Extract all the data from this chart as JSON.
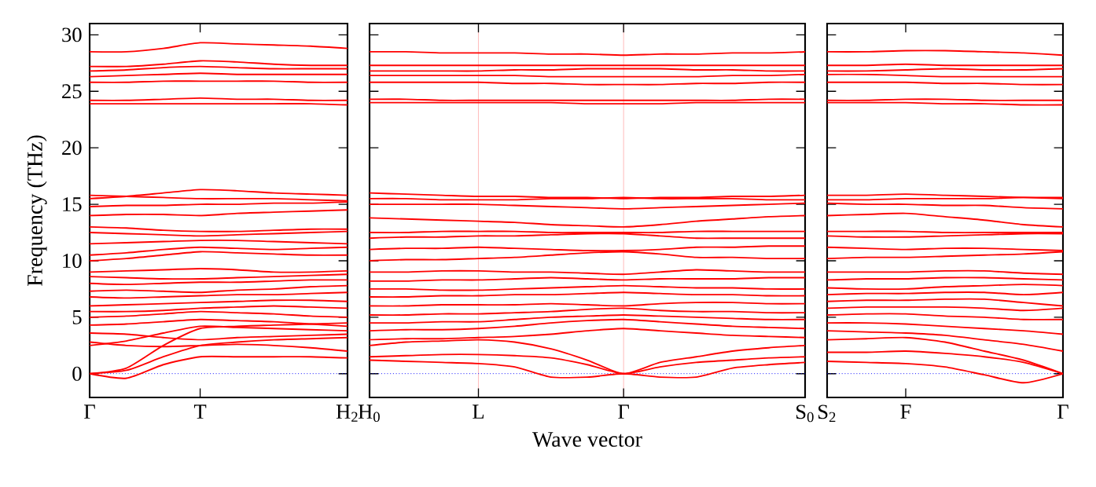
{
  "chart_data": [
    {
      "type": "line",
      "ylabel": "Frequency (THz)",
      "categories": [
        "Γ",
        null,
        null,
        "T",
        null,
        null,
        null,
        "H$_{2}$"
      ],
      "ylim": [
        -2.1,
        31
      ],
      "yticks": [
        0,
        5,
        10,
        15,
        20,
        25,
        30
      ],
      "ref_lines": [
        {
          "axis": "y",
          "value": 0,
          "color": "#0000ff",
          "line_style": "dotted"
        }
      ],
      "series": [
        {
          "color": "#ff0000",
          "values": [
            0,
            0.3,
            1.5,
            2.5,
            2.8,
            3.0,
            3.1,
            3.2
          ]
        },
        {
          "color": "#ff0000",
          "values": [
            0,
            0.5,
            2.5,
            4.0,
            4.2,
            4.3,
            4.4,
            4.5
          ]
        },
        {
          "color": "#ff0000",
          "values": [
            0,
            -0.4,
            0.8,
            1.5,
            1.5,
            1.5,
            1.5,
            1.4
          ]
        },
        {
          "color": "#ff0000",
          "values": [
            2.5,
            2.9,
            3.6,
            4.2,
            4.1,
            4.0,
            3.9,
            3.8
          ]
        },
        {
          "color": "#ff0000",
          "values": [
            2.8,
            2.5,
            2.4,
            2.5,
            2.6,
            2.5,
            2.3,
            2.0
          ]
        },
        {
          "color": "#ff0000",
          "values": [
            3.6,
            3.5,
            3.2,
            3.0,
            3.2,
            3.3,
            3.4,
            3.5
          ]
        },
        {
          "color": "#ff0000",
          "values": [
            4.3,
            4.4,
            4.6,
            4.8,
            4.7,
            4.6,
            4.4,
            4.2
          ]
        },
        {
          "color": "#ff0000",
          "values": [
            5.0,
            5.1,
            5.3,
            5.5,
            5.4,
            5.3,
            5.1,
            5.0
          ]
        },
        {
          "color": "#ff0000",
          "values": [
            5.5,
            5.5,
            5.6,
            5.8,
            5.9,
            6.0,
            5.9,
            5.8
          ]
        },
        {
          "color": "#ff0000",
          "values": [
            6.0,
            6.1,
            6.2,
            6.3,
            6.4,
            6.5,
            6.5,
            6.4
          ]
        },
        {
          "color": "#ff0000",
          "values": [
            6.8,
            6.7,
            6.8,
            6.9,
            7.0,
            7.0,
            7.1,
            7.2
          ]
        },
        {
          "color": "#ff0000",
          "values": [
            7.3,
            7.4,
            7.3,
            7.2,
            7.4,
            7.5,
            7.7,
            7.8
          ]
        },
        {
          "color": "#ff0000",
          "values": [
            8.0,
            7.9,
            8.0,
            8.1,
            8.1,
            8.2,
            8.3,
            8.3
          ]
        },
        {
          "color": "#ff0000",
          "values": [
            8.6,
            8.5,
            8.4,
            8.4,
            8.5,
            8.6,
            8.7,
            8.8
          ]
        },
        {
          "color": "#ff0000",
          "values": [
            9.0,
            9.1,
            9.2,
            9.3,
            9.2,
            9.0,
            9.0,
            9.1
          ]
        },
        {
          "color": "#ff0000",
          "values": [
            10.0,
            10.2,
            10.5,
            10.8,
            10.7,
            10.6,
            10.5,
            10.5
          ]
        },
        {
          "color": "#ff0000",
          "values": [
            10.5,
            10.7,
            11.0,
            11.2,
            11.1,
            11.0,
            11.1,
            11.2
          ]
        },
        {
          "color": "#ff0000",
          "values": [
            11.5,
            11.6,
            11.7,
            11.8,
            11.8,
            11.7,
            11.6,
            11.5
          ]
        },
        {
          "color": "#ff0000",
          "values": [
            12.5,
            12.4,
            12.3,
            12.2,
            12.3,
            12.4,
            12.5,
            12.6
          ]
        },
        {
          "color": "#ff0000",
          "values": [
            13.0,
            12.9,
            12.7,
            12.6,
            12.6,
            12.7,
            12.8,
            12.8
          ]
        },
        {
          "color": "#ff0000",
          "values": [
            14.0,
            14.1,
            14.1,
            14.0,
            14.2,
            14.3,
            14.4,
            14.5
          ]
        },
        {
          "color": "#ff0000",
          "values": [
            14.8,
            14.9,
            14.9,
            15.0,
            15.0,
            15.1,
            15.1,
            15.2
          ]
        },
        {
          "color": "#ff0000",
          "values": [
            15.5,
            15.7,
            16.0,
            16.3,
            16.2,
            16.0,
            15.9,
            15.8
          ]
        },
        {
          "color": "#ff0000",
          "values": [
            15.8,
            15.7,
            15.6,
            15.5,
            15.5,
            15.5,
            15.4,
            15.3
          ]
        },
        {
          "color": "#ff0000",
          "values": [
            24.2,
            24.2,
            24.3,
            24.4,
            24.3,
            24.3,
            24.2,
            24.2
          ]
        },
        {
          "color": "#ff0000",
          "values": [
            23.9,
            23.9,
            23.9,
            23.9,
            23.9,
            23.9,
            23.9,
            23.8
          ]
        },
        {
          "color": "#ff0000",
          "values": [
            25.8,
            25.8,
            25.9,
            25.9,
            25.9,
            25.9,
            25.8,
            25.8
          ]
        },
        {
          "color": "#ff0000",
          "values": [
            26.3,
            26.4,
            26.5,
            26.6,
            26.5,
            26.5,
            26.5,
            26.5
          ]
        },
        {
          "color": "#ff0000",
          "values": [
            26.8,
            26.9,
            27.1,
            27.2,
            27.1,
            27.0,
            27.0,
            27.0
          ]
        },
        {
          "color": "#ff0000",
          "values": [
            27.2,
            27.2,
            27.4,
            27.7,
            27.6,
            27.4,
            27.3,
            27.3
          ]
        },
        {
          "color": "#ff0000",
          "values": [
            28.5,
            28.5,
            28.8,
            29.3,
            29.2,
            29.1,
            29.0,
            28.8
          ]
        }
      ]
    },
    {
      "type": "line",
      "xlabel": "Wave vector",
      "grid": "x",
      "tick_labels": "x",
      "categories": [
        "H$_{0}$",
        null,
        null,
        "L",
        null,
        null,
        null,
        "Γ",
        null,
        null,
        null,
        null,
        "S$_{0}$"
      ],
      "ylim": [
        -2.1,
        31
      ],
      "yticks": [
        0,
        5,
        10,
        15,
        20,
        25,
        30
      ],
      "ref_lines": [
        {
          "axis": "y",
          "value": 0,
          "color": "#0000ff",
          "line_style": "dotted"
        }
      ],
      "series": [
        {
          "color": "#ff0000",
          "values": [
            1.5,
            1.6,
            1.7,
            1.7,
            1.6,
            1.4,
            0.8,
            0,
            0.6,
            1.0,
            1.2,
            1.4,
            1.5
          ]
        },
        {
          "color": "#ff0000",
          "values": [
            1.2,
            1.1,
            1.0,
            0.9,
            0.6,
            -0.3,
            -0.3,
            0,
            -0.3,
            -0.3,
            0.5,
            0.8,
            1.0
          ]
        },
        {
          "color": "#ff0000",
          "values": [
            2.5,
            2.8,
            2.9,
            3.0,
            2.8,
            2.2,
            1.2,
            0,
            1.0,
            1.5,
            2.0,
            2.3,
            2.5
          ]
        },
        {
          "color": "#ff0000",
          "values": [
            3.0,
            3.1,
            3.1,
            3.2,
            3.3,
            3.5,
            3.8,
            4.0,
            3.8,
            3.6,
            3.4,
            3.3,
            3.2
          ]
        },
        {
          "color": "#ff0000",
          "values": [
            3.8,
            3.9,
            3.9,
            4.0,
            4.2,
            4.5,
            4.7,
            4.8,
            4.6,
            4.4,
            4.2,
            4.1,
            4.0
          ]
        },
        {
          "color": "#ff0000",
          "values": [
            4.5,
            4.5,
            4.6,
            4.6,
            4.8,
            5.0,
            5.1,
            5.2,
            5.1,
            5.0,
            4.9,
            4.8,
            4.8
          ]
        },
        {
          "color": "#ff0000",
          "values": [
            5.2,
            5.2,
            5.3,
            5.3,
            5.4,
            5.5,
            5.7,
            5.8,
            5.6,
            5.5,
            5.5,
            5.4,
            5.4
          ]
        },
        {
          "color": "#ff0000",
          "values": [
            6.0,
            6.0,
            6.1,
            6.1,
            6.1,
            6.2,
            6.1,
            6.0,
            6.2,
            6.3,
            6.3,
            6.2,
            6.2
          ]
        },
        {
          "color": "#ff0000",
          "values": [
            6.8,
            6.8,
            6.9,
            6.9,
            7.0,
            7.0,
            7.1,
            7.2,
            7.1,
            7.0,
            7.0,
            6.9,
            6.9
          ]
        },
        {
          "color": "#ff0000",
          "values": [
            7.5,
            7.5,
            7.4,
            7.4,
            7.5,
            7.6,
            7.7,
            7.8,
            7.7,
            7.6,
            7.6,
            7.5,
            7.5
          ]
        },
        {
          "color": "#ff0000",
          "values": [
            8.2,
            8.2,
            8.3,
            8.3,
            8.4,
            8.5,
            8.4,
            8.3,
            8.4,
            8.4,
            8.4,
            8.5,
            8.5
          ]
        },
        {
          "color": "#ff0000",
          "values": [
            9.0,
            9.0,
            9.1,
            9.1,
            9.0,
            9.0,
            8.9,
            8.8,
            9.0,
            9.2,
            9.1,
            9.0,
            9.0
          ]
        },
        {
          "color": "#ff0000",
          "values": [
            10.0,
            10.1,
            10.1,
            10.2,
            10.3,
            10.5,
            10.7,
            10.8,
            10.6,
            10.3,
            10.3,
            10.2,
            10.2
          ]
        },
        {
          "color": "#ff0000",
          "values": [
            11.0,
            11.1,
            11.1,
            11.2,
            11.1,
            11.0,
            10.9,
            10.9,
            11.0,
            11.2,
            11.2,
            11.3,
            11.3
          ]
        },
        {
          "color": "#ff0000",
          "values": [
            12.0,
            12.1,
            12.1,
            12.2,
            12.2,
            12.3,
            12.4,
            12.4,
            12.2,
            12.0,
            12.0,
            12.0,
            12.0
          ]
        },
        {
          "color": "#ff0000",
          "values": [
            12.5,
            12.5,
            12.6,
            12.6,
            12.6,
            12.5,
            12.5,
            12.5,
            12.5,
            12.6,
            12.6,
            12.6,
            12.6
          ]
        },
        {
          "color": "#ff0000",
          "values": [
            13.8,
            13.7,
            13.6,
            13.5,
            13.4,
            13.2,
            13.1,
            13.0,
            13.2,
            13.5,
            13.7,
            13.9,
            14.0
          ]
        },
        {
          "color": "#ff0000",
          "values": [
            15.0,
            15.0,
            15.0,
            15.0,
            14.9,
            14.8,
            14.7,
            14.6,
            14.7,
            14.8,
            14.9,
            15.0,
            15.1
          ]
        },
        {
          "color": "#ff0000",
          "values": [
            15.5,
            15.5,
            15.4,
            15.4,
            15.4,
            15.5,
            15.5,
            15.6,
            15.5,
            15.5,
            15.5,
            15.4,
            15.4
          ]
        },
        {
          "color": "#ff0000",
          "values": [
            16.0,
            15.9,
            15.8,
            15.7,
            15.7,
            15.6,
            15.6,
            15.5,
            15.6,
            15.6,
            15.7,
            15.7,
            15.8
          ]
        },
        {
          "color": "#ff0000",
          "values": [
            24.0,
            24.0,
            24.0,
            24.0,
            24.0,
            24.0,
            23.9,
            23.9,
            23.9,
            24.0,
            24.0,
            24.0,
            24.0
          ]
        },
        {
          "color": "#ff0000",
          "values": [
            24.3,
            24.3,
            24.2,
            24.2,
            24.2,
            24.2,
            24.2,
            24.2,
            24.2,
            24.2,
            24.2,
            24.3,
            24.3
          ]
        },
        {
          "color": "#ff0000",
          "values": [
            25.8,
            25.8,
            25.8,
            25.8,
            25.7,
            25.7,
            25.6,
            25.6,
            25.6,
            25.7,
            25.7,
            25.8,
            25.8
          ]
        },
        {
          "color": "#ff0000",
          "values": [
            26.4,
            26.4,
            26.4,
            26.4,
            26.4,
            26.3,
            26.3,
            26.3,
            26.3,
            26.3,
            26.4,
            26.4,
            26.5
          ]
        },
        {
          "color": "#ff0000",
          "values": [
            26.8,
            26.8,
            26.8,
            26.8,
            26.9,
            26.9,
            27.0,
            27.0,
            27.0,
            26.9,
            26.9,
            26.8,
            26.8
          ]
        },
        {
          "color": "#ff0000",
          "values": [
            27.3,
            27.3,
            27.3,
            27.3,
            27.3,
            27.3,
            27.3,
            27.3,
            27.3,
            27.3,
            27.3,
            27.3,
            27.3
          ]
        },
        {
          "color": "#ff0000",
          "values": [
            28.5,
            28.5,
            28.4,
            28.4,
            28.4,
            28.3,
            28.3,
            28.2,
            28.3,
            28.3,
            28.4,
            28.4,
            28.5
          ]
        }
      ]
    },
    {
      "type": "line",
      "tick_labels": "x",
      "categories": [
        "S$_{2}$",
        null,
        "F",
        null,
        null,
        null,
        "Γ"
      ],
      "ylim": [
        -2.1,
        31
      ],
      "yticks": [
        0,
        5,
        10,
        15,
        20,
        25,
        30
      ],
      "ref_lines": [
        {
          "axis": "y",
          "value": 0,
          "color": "#0000ff",
          "line_style": "dotted"
        }
      ],
      "series": [
        {
          "color": "#ff0000",
          "values": [
            1.9,
            1.9,
            2.0,
            1.8,
            1.5,
            1.0,
            0
          ]
        },
        {
          "color": "#ff0000",
          "values": [
            1.1,
            1.0,
            0.9,
            0.6,
            -0.1,
            -0.8,
            0
          ]
        },
        {
          "color": "#ff0000",
          "values": [
            3.0,
            3.1,
            3.2,
            2.8,
            2.0,
            1.2,
            0
          ]
        },
        {
          "color": "#ff0000",
          "values": [
            3.8,
            3.7,
            3.6,
            3.4,
            3.0,
            2.6,
            2.0
          ]
        },
        {
          "color": "#ff0000",
          "values": [
            4.5,
            4.5,
            4.4,
            4.2,
            4.0,
            3.8,
            3.5
          ]
        },
        {
          "color": "#ff0000",
          "values": [
            5.2,
            5.3,
            5.3,
            5.1,
            5.0,
            4.8,
            4.8
          ]
        },
        {
          "color": "#ff0000",
          "values": [
            5.8,
            5.9,
            5.9,
            5.9,
            5.8,
            5.6,
            5.8
          ]
        },
        {
          "color": "#ff0000",
          "values": [
            6.4,
            6.5,
            6.5,
            6.6,
            6.6,
            6.3,
            6.0
          ]
        },
        {
          "color": "#ff0000",
          "values": [
            7.0,
            7.1,
            7.1,
            7.2,
            7.2,
            7.0,
            7.2
          ]
        },
        {
          "color": "#ff0000",
          "values": [
            7.6,
            7.5,
            7.5,
            7.7,
            7.8,
            7.9,
            7.8
          ]
        },
        {
          "color": "#ff0000",
          "values": [
            8.3,
            8.4,
            8.4,
            8.5,
            8.5,
            8.4,
            8.3
          ]
        },
        {
          "color": "#ff0000",
          "values": [
            9.0,
            9.0,
            9.0,
            9.1,
            9.1,
            8.9,
            8.8
          ]
        },
        {
          "color": "#ff0000",
          "values": [
            10.2,
            10.3,
            10.3,
            10.4,
            10.5,
            10.6,
            10.8
          ]
        },
        {
          "color": "#ff0000",
          "values": [
            11.2,
            11.1,
            11.0,
            11.1,
            11.1,
            11.0,
            10.9
          ]
        },
        {
          "color": "#ff0000",
          "values": [
            12.2,
            12.1,
            12.1,
            12.2,
            12.3,
            12.4,
            12.4
          ]
        },
        {
          "color": "#ff0000",
          "values": [
            12.6,
            12.6,
            12.6,
            12.5,
            12.5,
            12.5,
            12.5
          ]
        },
        {
          "color": "#ff0000",
          "values": [
            14.0,
            14.1,
            14.2,
            13.9,
            13.6,
            13.2,
            13.0
          ]
        },
        {
          "color": "#ff0000",
          "values": [
            15.1,
            15.0,
            15.0,
            14.9,
            14.9,
            14.7,
            14.6
          ]
        },
        {
          "color": "#ff0000",
          "values": [
            15.4,
            15.4,
            15.5,
            15.5,
            15.5,
            15.6,
            15.6
          ]
        },
        {
          "color": "#ff0000",
          "values": [
            15.8,
            15.8,
            15.9,
            15.8,
            15.7,
            15.6,
            15.5
          ]
        },
        {
          "color": "#ff0000",
          "values": [
            24.2,
            24.2,
            24.3,
            24.3,
            24.2,
            24.2,
            24.2
          ]
        },
        {
          "color": "#ff0000",
          "values": [
            24.0,
            24.0,
            24.0,
            23.9,
            23.9,
            23.8,
            23.8
          ]
        },
        {
          "color": "#ff0000",
          "values": [
            25.8,
            25.8,
            25.8,
            25.7,
            25.7,
            25.6,
            25.6
          ]
        },
        {
          "color": "#ff0000",
          "values": [
            26.5,
            26.5,
            26.4,
            26.3,
            26.3,
            26.3,
            26.3
          ]
        },
        {
          "color": "#ff0000",
          "values": [
            26.8,
            26.8,
            26.9,
            27.0,
            26.9,
            26.9,
            27.0
          ]
        },
        {
          "color": "#ff0000",
          "values": [
            27.3,
            27.3,
            27.4,
            27.3,
            27.3,
            27.3,
            27.3
          ]
        },
        {
          "color": "#ff0000",
          "values": [
            28.5,
            28.5,
            28.6,
            28.6,
            28.5,
            28.4,
            28.2
          ]
        }
      ]
    }
  ]
}
